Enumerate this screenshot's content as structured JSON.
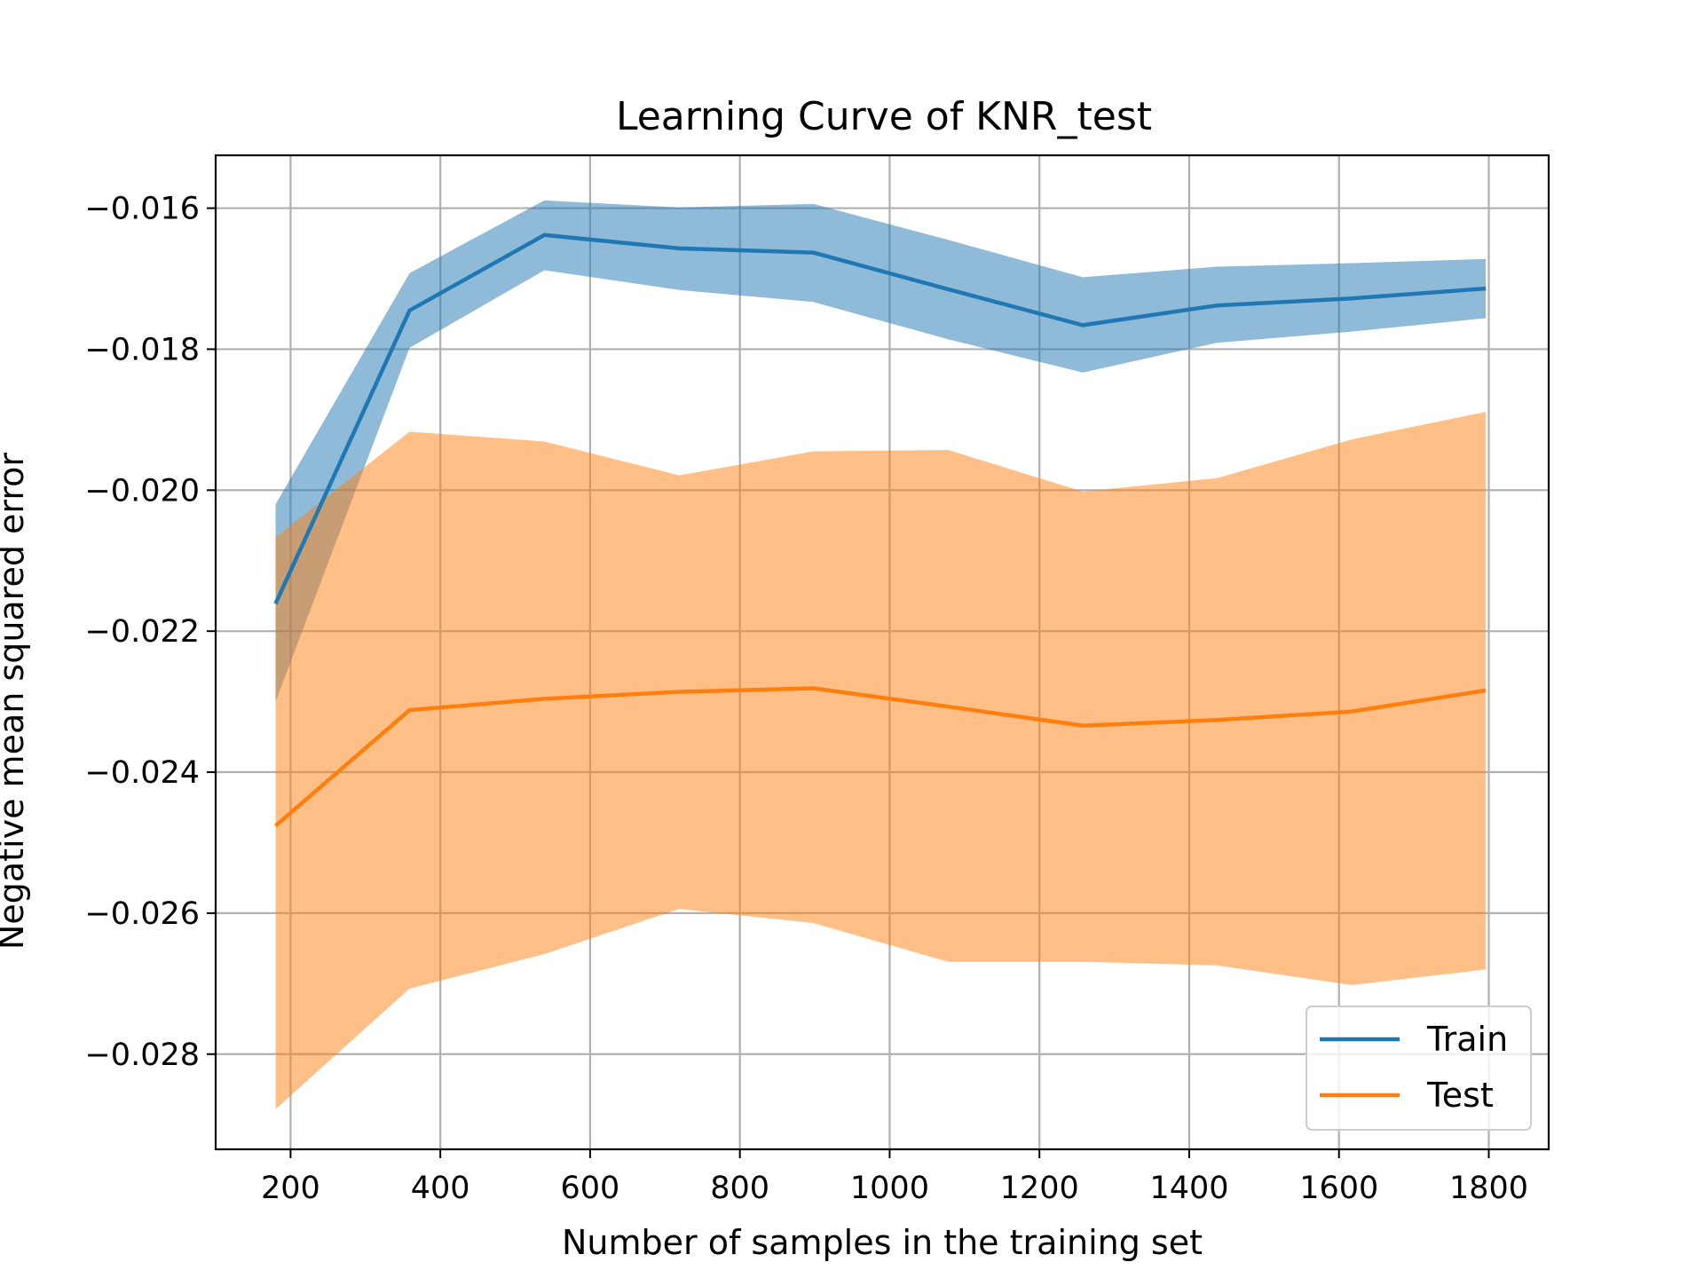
{
  "chart_data": {
    "type": "line",
    "title": "Learning Curve of KNR_test",
    "xlabel": "Number of samples in the training set",
    "ylabel": "Negative mean squared error",
    "xlim": [
      100,
      1880
    ],
    "ylim": [
      -0.02935,
      -0.01525
    ],
    "xticks": [
      200,
      400,
      600,
      800,
      1000,
      1200,
      1400,
      1600,
      1800
    ],
    "xtick_labels": [
      "200",
      "400",
      "600",
      "800",
      "1000",
      "1200",
      "1400",
      "1600",
      "1800"
    ],
    "yticks": [
      -0.016,
      -0.018,
      -0.02,
      -0.022,
      -0.024,
      -0.026,
      -0.028
    ],
    "ytick_labels": [
      "−0.016",
      "−0.018",
      "−0.020",
      "−0.022",
      "−0.024",
      "−0.026",
      "−0.028"
    ],
    "grid": true,
    "legend_position": "lower-right",
    "x": [
      180,
      359,
      539,
      719,
      898,
      1078,
      1258,
      1437,
      1617,
      1796
    ],
    "series": [
      {
        "name": "Train",
        "color": "#1f77b4",
        "band_color": "#1f77b4",
        "values": [
          -0.02161,
          -0.01745,
          -0.01638,
          -0.01657,
          -0.01663,
          -0.01715,
          -0.01766,
          -0.01738,
          -0.01728,
          -0.01714
        ],
        "upper": [
          -0.0202,
          -0.01692,
          -0.01589,
          -0.01599,
          -0.01594,
          -0.01645,
          -0.01698,
          -0.01683,
          -0.01678,
          -0.01672
        ],
        "lower": [
          -0.023,
          -0.01798,
          -0.01688,
          -0.01716,
          -0.01733,
          -0.01786,
          -0.01833,
          -0.01791,
          -0.01775,
          -0.01756
        ]
      },
      {
        "name": "Test",
        "color": "#ff7f0e",
        "band_color": "#ff7f0e",
        "values": [
          -0.02476,
          -0.02312,
          -0.02296,
          -0.02286,
          -0.02281,
          -0.02307,
          -0.02334,
          -0.02326,
          -0.02314,
          -0.02284
        ],
        "upper": [
          -0.02067,
          -0.01917,
          -0.01931,
          -0.01979,
          -0.01945,
          -0.01943,
          -0.02002,
          -0.01983,
          -0.01928,
          -0.01889
        ],
        "lower": [
          -0.02878,
          -0.02707,
          -0.02658,
          -0.02594,
          -0.02614,
          -0.02669,
          -0.02669,
          -0.02674,
          -0.02702,
          -0.0268
        ]
      }
    ]
  }
}
